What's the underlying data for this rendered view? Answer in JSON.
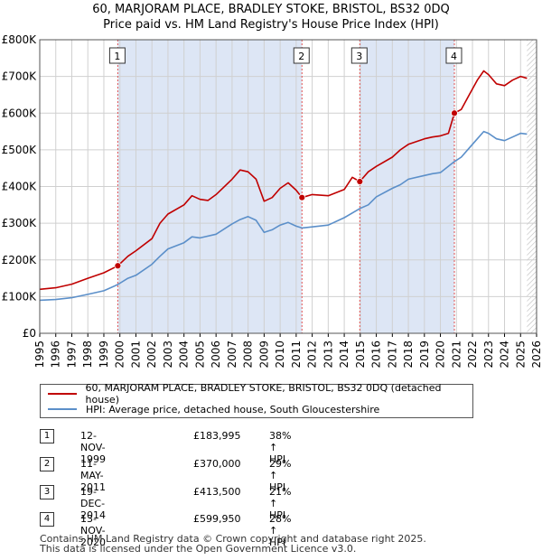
{
  "title_line1": "60, MARJORAM PLACE, BRADLEY STOKE, BRISTOL, BS32 0DQ",
  "title_line2": "Price paid vs. HM Land Registry's House Price Index (HPI)",
  "colors": {
    "property": "#c00000",
    "hpi": "#5b8fc9",
    "shade": "#dde6f5",
    "grid": "#d0d0d0",
    "marker_line": "#e05050"
  },
  "chart_data": {
    "type": "line",
    "xlim": [
      1995,
      2026
    ],
    "ylim": [
      0,
      800000
    ],
    "y_ticks": [
      0,
      100000,
      200000,
      300000,
      400000,
      500000,
      600000,
      700000,
      800000
    ],
    "y_tick_labels": [
      "£0",
      "£100K",
      "£200K",
      "£300K",
      "£400K",
      "£500K",
      "£600K",
      "£700K",
      "£800K"
    ],
    "x_ticks": [
      1995,
      1996,
      1997,
      1998,
      1999,
      2000,
      2001,
      2002,
      2003,
      2004,
      2005,
      2006,
      2007,
      2008,
      2009,
      2010,
      2011,
      2012,
      2013,
      2014,
      2015,
      2016,
      2017,
      2018,
      2019,
      2020,
      2021,
      2022,
      2023,
      2024,
      2025,
      2026
    ],
    "x_tick_labels": [
      "1995",
      "1996",
      "1997",
      "1998",
      "1999",
      "2000",
      "2001",
      "2002",
      "2003",
      "2004",
      "2005",
      "2006",
      "2007",
      "2008",
      "2009",
      "2010",
      "2011",
      "2012",
      "2013",
      "2014",
      "2015",
      "2016",
      "2017",
      "2018",
      "2019",
      "2020",
      "2021",
      "2022",
      "2023",
      "2024",
      "2025",
      "2026"
    ],
    "shaded_ranges": [
      [
        1999.87,
        2011.36
      ],
      [
        2014.97,
        2020.87
      ]
    ],
    "data_end": 2025.4,
    "series": [
      {
        "name": "60, MARJORAM PLACE, BRADLEY STOKE, BRISTOL, BS32 0DQ (detached house)",
        "color": "#c00000",
        "points": [
          [
            1995.0,
            120000
          ],
          [
            1996.0,
            124000
          ],
          [
            1997.0,
            134000
          ],
          [
            1998.0,
            150000
          ],
          [
            1999.0,
            165000
          ],
          [
            1999.87,
            183995
          ],
          [
            2000.5,
            210000
          ],
          [
            2001.0,
            225000
          ],
          [
            2002.0,
            258000
          ],
          [
            2002.5,
            300000
          ],
          [
            2003.0,
            325000
          ],
          [
            2004.0,
            350000
          ],
          [
            2004.5,
            375000
          ],
          [
            2005.0,
            365000
          ],
          [
            2005.5,
            362000
          ],
          [
            2006.0,
            378000
          ],
          [
            2007.0,
            420000
          ],
          [
            2007.5,
            445000
          ],
          [
            2008.0,
            440000
          ],
          [
            2008.5,
            420000
          ],
          [
            2009.0,
            360000
          ],
          [
            2009.5,
            370000
          ],
          [
            2010.0,
            395000
          ],
          [
            2010.5,
            410000
          ],
          [
            2011.0,
            390000
          ],
          [
            2011.36,
            370000
          ],
          [
            2012.0,
            378000
          ],
          [
            2013.0,
            375000
          ],
          [
            2014.0,
            392000
          ],
          [
            2014.5,
            425000
          ],
          [
            2014.97,
            413500
          ],
          [
            2015.5,
            440000
          ],
          [
            2016.0,
            455000
          ],
          [
            2017.0,
            480000
          ],
          [
            2017.5,
            500000
          ],
          [
            2018.0,
            515000
          ],
          [
            2019.0,
            530000
          ],
          [
            2019.5,
            535000
          ],
          [
            2020.0,
            538000
          ],
          [
            2020.5,
            545000
          ],
          [
            2020.87,
            599950
          ],
          [
            2021.3,
            610000
          ],
          [
            2021.8,
            650000
          ],
          [
            2022.3,
            690000
          ],
          [
            2022.7,
            715000
          ],
          [
            2023.0,
            705000
          ],
          [
            2023.5,
            680000
          ],
          [
            2024.0,
            675000
          ],
          [
            2024.5,
            690000
          ],
          [
            2025.0,
            700000
          ],
          [
            2025.4,
            695000
          ]
        ]
      },
      {
        "name": "HPI: Average price, detached house, South Gloucestershire",
        "color": "#5b8fc9",
        "points": [
          [
            1995.0,
            90000
          ],
          [
            1996.0,
            92000
          ],
          [
            1997.0,
            97000
          ],
          [
            1998.0,
            106000
          ],
          [
            1999.0,
            116000
          ],
          [
            1999.87,
            133000
          ],
          [
            2000.5,
            150000
          ],
          [
            2001.0,
            158000
          ],
          [
            2002.0,
            188000
          ],
          [
            2002.5,
            210000
          ],
          [
            2003.0,
            230000
          ],
          [
            2004.0,
            247000
          ],
          [
            2004.5,
            263000
          ],
          [
            2005.0,
            260000
          ],
          [
            2006.0,
            270000
          ],
          [
            2007.0,
            298000
          ],
          [
            2007.5,
            310000
          ],
          [
            2008.0,
            318000
          ],
          [
            2008.5,
            308000
          ],
          [
            2009.0,
            275000
          ],
          [
            2009.5,
            282000
          ],
          [
            2010.0,
            295000
          ],
          [
            2010.5,
            302000
          ],
          [
            2011.0,
            292000
          ],
          [
            2011.36,
            287000
          ],
          [
            2012.0,
            290000
          ],
          [
            2013.0,
            295000
          ],
          [
            2014.0,
            315000
          ],
          [
            2014.97,
            340000
          ],
          [
            2015.5,
            350000
          ],
          [
            2016.0,
            372000
          ],
          [
            2017.0,
            395000
          ],
          [
            2017.5,
            405000
          ],
          [
            2018.0,
            420000
          ],
          [
            2019.0,
            430000
          ],
          [
            2019.5,
            435000
          ],
          [
            2020.0,
            438000
          ],
          [
            2020.87,
            468000
          ],
          [
            2021.3,
            480000
          ],
          [
            2021.8,
            505000
          ],
          [
            2022.3,
            530000
          ],
          [
            2022.7,
            550000
          ],
          [
            2023.0,
            545000
          ],
          [
            2023.5,
            530000
          ],
          [
            2024.0,
            525000
          ],
          [
            2024.5,
            535000
          ],
          [
            2025.0,
            545000
          ],
          [
            2025.4,
            543000
          ]
        ]
      }
    ],
    "sale_markers": [
      {
        "label": "1",
        "x": 1999.87,
        "y": 183995
      },
      {
        "label": "2",
        "x": 2011.36,
        "y": 370000
      },
      {
        "label": "3",
        "x": 2014.97,
        "y": 413500
      },
      {
        "label": "4",
        "x": 2020.87,
        "y": 599950
      }
    ]
  },
  "legend": {
    "property": "60, MARJORAM PLACE, BRADLEY STOKE, BRISTOL, BS32 0DQ (detached house)",
    "hpi": "HPI: Average price, detached house, South Gloucestershire"
  },
  "transactions": [
    {
      "num": "1",
      "date": "12-NOV-1999",
      "price": "£183,995",
      "hpi": "38% ↑ HPI"
    },
    {
      "num": "2",
      "date": "11-MAY-2011",
      "price": "£370,000",
      "hpi": "29% ↑ HPI"
    },
    {
      "num": "3",
      "date": "19-DEC-2014",
      "price": "£413,500",
      "hpi": "21% ↑ HPI"
    },
    {
      "num": "4",
      "date": "13-NOV-2020",
      "price": "£599,950",
      "hpi": "28% ↑ HPI"
    }
  ],
  "footer_line1": "Contains HM Land Registry data © Crown copyright and database right 2025.",
  "footer_line2": "This data is licensed under the Open Government Licence v3.0."
}
